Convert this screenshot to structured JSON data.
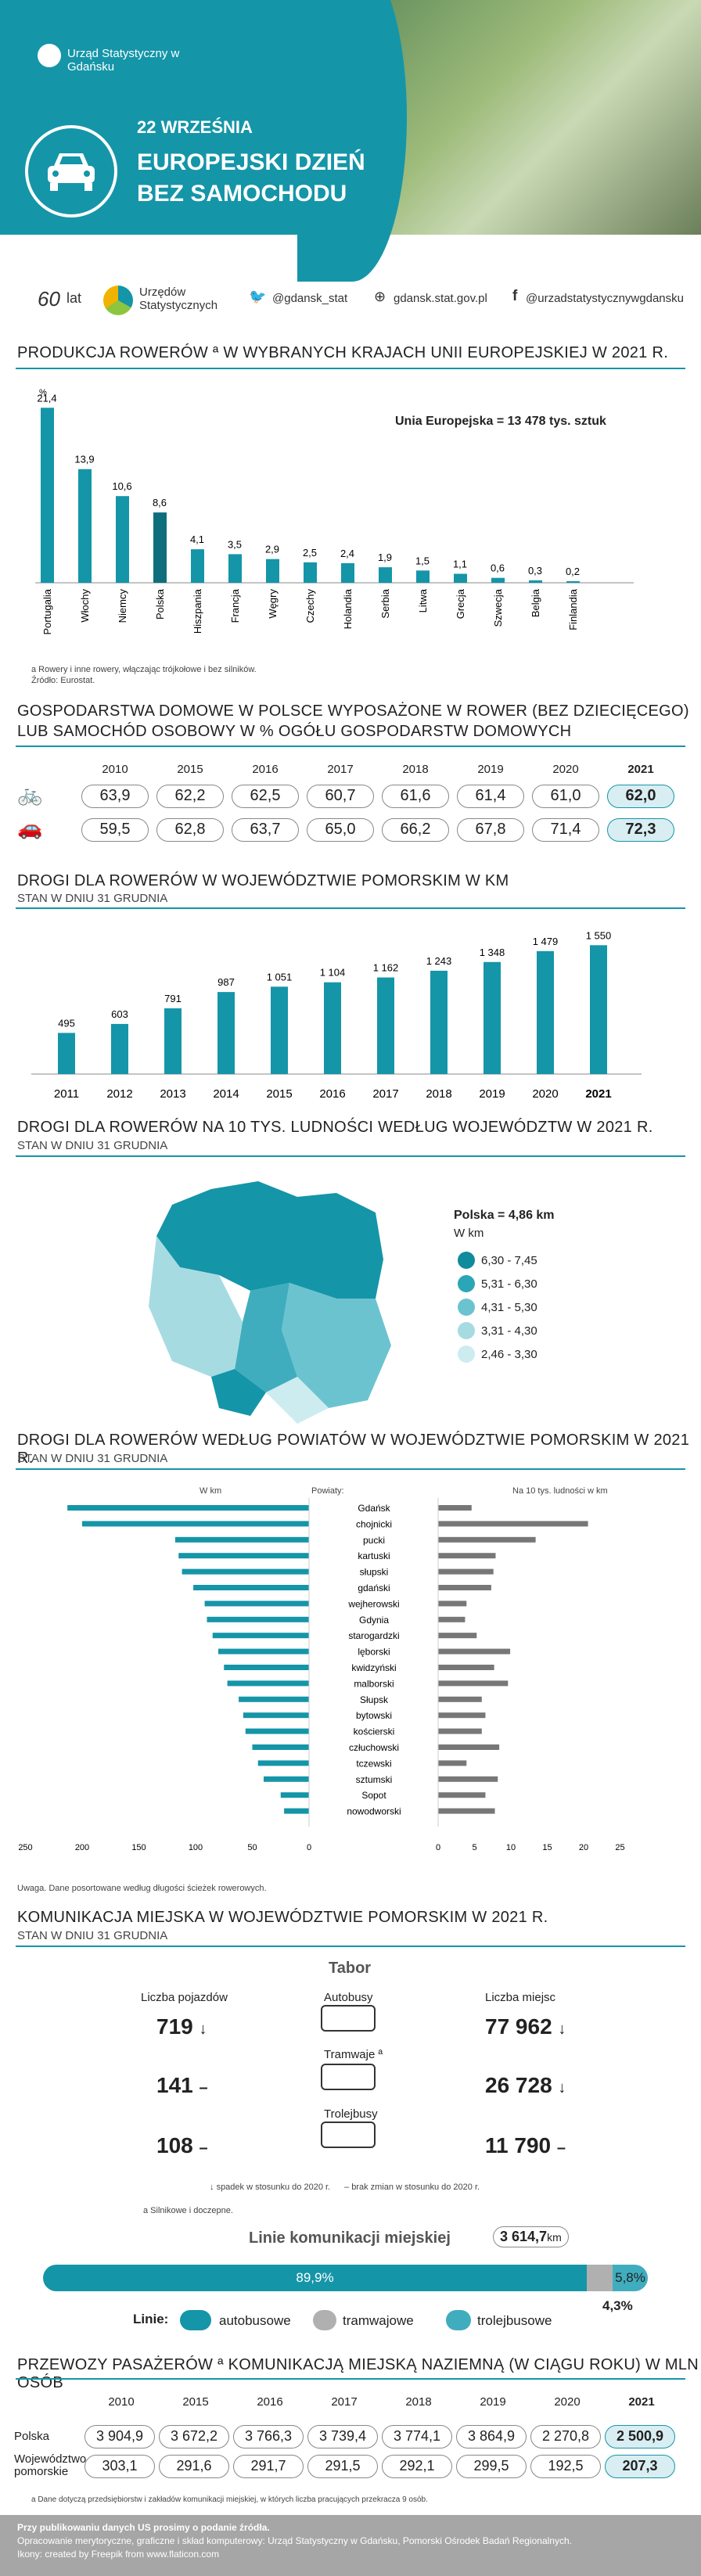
{
  "header": {
    "logo": "Urząd Statystyczny w Gdańsku",
    "date": "22 WRZEŚNIA",
    "title_1": "EUROPEJSKI DZIEŃ",
    "title_2": "BEZ SAMOCHODU"
  },
  "strip": {
    "brand": "Urzędów Statystycznych",
    "twitter": "@gdansk_stat",
    "web": "gdansk.stat.gov.pl",
    "facebook": "@urzadstatystycznywgdansku"
  },
  "s1": {
    "title": "PRODUKCJA ROWERÓW ª W WYBRANYCH KRAJACH UNII EUROPEJSKIEJ W 2021 R.",
    "eu": "Unia Europejska = 13 478 tys. sztuk",
    "note1": "a Rowery i inne rowery, włączając trójkołowe i bez silników.",
    "note2": "Źródło: Eurostat."
  },
  "s2": {
    "title1": "GOSPODARSTWA DOMOWE W POLSCE WYPOSAŻONE W ROWER (BEZ DZIECIĘCEGO)",
    "title2": "LUB SAMOCHÓD OSOBOWY W % OGÓŁU GOSPODARSTW DOMOWYCH"
  },
  "s3": {
    "title": "DROGI DLA ROWERÓW W WOJEWÓDZTWIE POMORSKIM W KM",
    "sub": "STAN W DNIU 31 GRUDNIA"
  },
  "s4": {
    "title": "DROGI DLA ROWERÓW NA 10 TYS. LUDNOŚCI WEDŁUG WOJEWÓDZTW W 2021 R.",
    "sub": "STAN W DNIU 31 GRUDNIA",
    "poland": "Polska = 4,86 km",
    "unit": "W km",
    "legend": [
      "6,30 - 7,45",
      "5,31 - 6,30",
      "4,31 - 5,30",
      "3,31 - 4,30",
      "2,46 - 3,30"
    ]
  },
  "s5": {
    "title": "DROGI DLA ROWERÓW WEDŁUG POWIATÓW W WOJEWÓDZTWIE POMORSKIM W 2021 R.",
    "sub": "STAN W DNIU 31 GRUDNIA",
    "left_head": "W km",
    "mid_head": "Powiaty:",
    "right_head": "Na 10 tys. ludności w km",
    "note": "Uwaga. Dane posortowane według długości ścieżek rowerowych."
  },
  "s6": {
    "title": "KOMUNIKACJA MIEJSKA W WOJEWÓDZTWIE POMORSKIM W 2021 R.",
    "sub": "STAN W DNIU 31 GRUDNIA",
    "tabor": "Tabor",
    "veh": "Liczba pojazdów",
    "seats": "Liczba miejsc",
    "bus": "Autobusy",
    "tram": "Tramwaje ª",
    "trol": "Trolejbusy",
    "bus_v": "719",
    "bus_s": "77 962",
    "tram_v": "141",
    "tram_s": "26 728",
    "trol_v": "108",
    "trol_s": "11 790",
    "legend_dec": "spadek w stosunku do 2020 r.",
    "legend_same": "brak zmian w stosunku do 2020 r.",
    "note": "a Silnikowe i doczepne.",
    "lines_label": "Linie komunikacji miejskiej",
    "lines_val": "3 614,7",
    "lines_unit": "km",
    "bus_pct": "89,9%",
    "trol_pct": "5,8%",
    "tram_pct": "4,3%",
    "lines": "Linie:",
    "lg_bus": "autobusowe",
    "lg_tram": "tramwajowe",
    "lg_trol": "trolejbusowe"
  },
  "s7": {
    "title": "PRZEWOZY PASAŻERÓW ª KOMUNIKACJĄ MIEJSKĄ NAZIEMNĄ (W CIĄGU ROKU) W MLN OSÓB",
    "row1": "Polska",
    "row2a": "Województwo",
    "row2b": "pomorskie",
    "note": "a Dane dotyczą przedsiębiorstw i zakładów komunikacji miejskiej, w których liczba pracujących przekracza 9 osób."
  },
  "footer": {
    "l1": "Przy publikowaniu danych US prosimy o podanie źródła.",
    "l2": "Opracowanie merytoryczne, graficzne i skład komputerowy: Urząd Statystyczny w Gdańsku, Pomorski Ośrodek Badań Regionalnych.",
    "l3": "Ikony: created by Freepik from www.flaticon.com"
  },
  "colors": {
    "teal": "#1595a8",
    "dark": "#0f6e7c",
    "gray": "#777"
  },
  "chart_data": [
    {
      "type": "bar",
      "title": "PRODUKCJA ROWERÓW W WYBRANYCH KRAJACH UNII EUROPEJSKIEJ W 2021 R.",
      "ylabel": "%",
      "categories": [
        "Portugalia",
        "Włochy",
        "Niemcy",
        "Polska",
        "Hiszpania",
        "Francja",
        "Węgry",
        "Czechy",
        "Holandia",
        "Serbia",
        "Litwa",
        "Grecja",
        "Szwecja",
        "Belgia",
        "Finlandia"
      ],
      "values": [
        21.4,
        13.9,
        10.6,
        8.6,
        4.1,
        3.5,
        2.9,
        2.5,
        2.4,
        1.9,
        1.5,
        1.1,
        0.6,
        0.3,
        0.2
      ],
      "labels": [
        "21,4",
        "13,9",
        "10,6",
        "8,6",
        "4,1",
        "3,5",
        "2,9",
        "2,5",
        "2,4",
        "1,9",
        "1,5",
        "1,1",
        "0,6",
        "0,3",
        "0,2"
      ]
    },
    {
      "type": "table",
      "title": "Gospodarstwa domowe wyposażone w rower lub samochód",
      "years": [
        "2010",
        "2015",
        "2016",
        "2017",
        "2018",
        "2019",
        "2020",
        "2021"
      ],
      "series": [
        {
          "name": "rower",
          "values": [
            "63,9",
            "62,2",
            "62,5",
            "60,7",
            "61,6",
            "61,4",
            "61,0",
            "62,0"
          ]
        },
        {
          "name": "samochód",
          "values": [
            "59,5",
            "62,8",
            "63,7",
            "65,0",
            "66,2",
            "67,8",
            "71,4",
            "72,3"
          ]
        }
      ]
    },
    {
      "type": "bar",
      "title": "DROGI DLA ROWERÓW W WOJEWÓDZTWIE POMORSKIM W KM",
      "categories": [
        "2011",
        "2012",
        "2013",
        "2014",
        "2015",
        "2016",
        "2017",
        "2018",
        "2019",
        "2020",
        "2021"
      ],
      "values": [
        495,
        603,
        791,
        987,
        1051,
        1104,
        1162,
        1243,
        1348,
        1479,
        1550
      ],
      "labels": [
        "495",
        "603",
        "791",
        "987",
        "1 051",
        "1 104",
        "1 162",
        "1 243",
        "1 348",
        "1 479",
        "1 550"
      ]
    },
    {
      "type": "bar",
      "title": "DROGI DLA ROWERÓW WEDŁUG POWIATÓW",
      "categories": [
        "Gdańsk",
        "chojnicki",
        "pucki",
        "kartuski",
        "słupski",
        "gdański",
        "wejherowski",
        "Gdynia",
        "starogardzki",
        "lęborski",
        "kwidzyński",
        "malborski",
        "Słupsk",
        "bytowski",
        "kościerski",
        "człuchowski",
        "tczewski",
        "sztumski",
        "Sopot",
        "nowodworski"
      ],
      "series": [
        {
          "name": "W km",
          "values": [
            213,
            200,
            118,
            115,
            112,
            102,
            92,
            90,
            85,
            80,
            75,
            72,
            62,
            58,
            56,
            50,
            45,
            40,
            25,
            22
          ]
        },
        {
          "name": "Na 10 tys. ludności w km",
          "values": [
            4.6,
            20.6,
            13.4,
            7.9,
            7.6,
            7.3,
            3.9,
            3.7,
            5.3,
            9.9,
            7.7,
            9.6,
            6.0,
            6.5,
            6.0,
            8.4,
            3.9,
            8.2,
            6.5,
            7.8
          ]
        }
      ],
      "xticks_left": [
        "250",
        "200",
        "150",
        "100",
        "50",
        "0"
      ],
      "xticks_right": [
        "0",
        "5",
        "10",
        "15",
        "20",
        "25"
      ]
    },
    {
      "type": "table",
      "title": "PRZEWOZY PASAŻERÓW W MLN OSÓB",
      "years": [
        "2010",
        "2015",
        "2016",
        "2017",
        "2018",
        "2019",
        "2020",
        "2021"
      ],
      "series": [
        {
          "name": "Polska",
          "values": [
            "3 904,9",
            "3 672,2",
            "3 766,3",
            "3 739,4",
            "3 774,1",
            "3 864,9",
            "2 270,8",
            "2 500,9"
          ]
        },
        {
          "name": "Województwo pomorskie",
          "values": [
            "303,1",
            "291,6",
            "291,7",
            "291,5",
            "292,1",
            "299,5",
            "192,5",
            "207,3"
          ]
        }
      ]
    }
  ]
}
